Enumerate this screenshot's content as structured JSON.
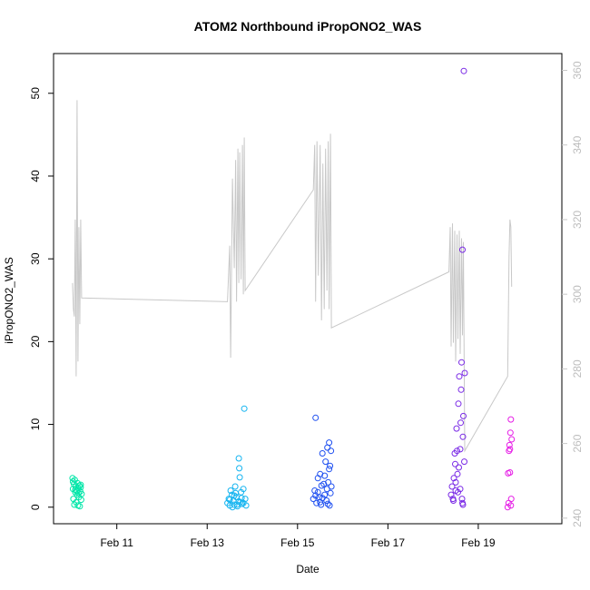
{
  "chart_data": {
    "type": "scatter",
    "title": "ATOM2 Northbound iPropONO2_WAS",
    "xlabel": "Date",
    "ylabel": "iPropONO2_WAS",
    "x_tick_labels": [
      "Feb 11",
      "Feb 13",
      "Feb 15",
      "Feb 17",
      "Feb 19"
    ],
    "x_tick_values": [
      11,
      13,
      15,
      17,
      19
    ],
    "xlim": [
      9.6,
      20.85
    ],
    "ylim": [
      -2.0,
      54.8
    ],
    "y_ticks": [
      0,
      10,
      20,
      30,
      40,
      50
    ],
    "y_right_ticks": [
      240,
      260,
      280,
      300,
      320,
      340,
      360
    ],
    "y_right_lim": [
      238.5,
      364.5
    ],
    "y_right_color": "#c8c8c8",
    "line_color": "#c8c8c8",
    "grid": false,
    "point_groups": [
      {
        "color": "#00e6a8",
        "points": [
          [
            10.02,
            3.5
          ],
          [
            10.03,
            2.2
          ],
          [
            10.04,
            1.0
          ],
          [
            10.05,
            2.8
          ],
          [
            10.06,
            0.3
          ],
          [
            10.07,
            3.3
          ],
          [
            10.08,
            1.8
          ],
          [
            10.09,
            2.5
          ],
          [
            10.1,
            0.6
          ],
          [
            10.11,
            2.0
          ],
          [
            10.12,
            1.5
          ],
          [
            10.13,
            2.9
          ],
          [
            10.14,
            0.2
          ],
          [
            10.15,
            2.3
          ],
          [
            10.16,
            1.2
          ],
          [
            10.17,
            2.6
          ],
          [
            10.18,
            0.1
          ],
          [
            10.19,
            1.9
          ],
          [
            10.2,
            2.7
          ],
          [
            10.21,
            0.9
          ],
          [
            10.22,
            1.6
          ],
          [
            10.03,
            3.1
          ],
          [
            10.08,
            2.1
          ],
          [
            10.15,
            1.7
          ],
          [
            10.2,
            2.4
          ]
        ]
      },
      {
        "color": "#14b4f0",
        "points": [
          [
            13.45,
            0.5
          ],
          [
            13.48,
            1.0
          ],
          [
            13.5,
            0.2
          ],
          [
            13.52,
            2.0
          ],
          [
            13.55,
            1.5
          ],
          [
            13.58,
            0.8
          ],
          [
            13.6,
            0.3
          ],
          [
            13.62,
            2.5
          ],
          [
            13.65,
            1.2
          ],
          [
            13.67,
            0.1
          ],
          [
            13.7,
            5.9
          ],
          [
            13.71,
            4.7
          ],
          [
            13.72,
            3.6
          ],
          [
            13.73,
            0.6
          ],
          [
            13.75,
            1.8
          ],
          [
            13.77,
            0.4
          ],
          [
            13.8,
            2.2
          ],
          [
            13.82,
            11.9
          ],
          [
            13.84,
            1.0
          ],
          [
            13.86,
            0.2
          ],
          [
            13.5,
            0.9
          ],
          [
            13.6,
            1.4
          ],
          [
            13.7,
            0.7
          ],
          [
            13.8,
            0.5
          ],
          [
            13.56,
            0.0
          ],
          [
            13.66,
            0.3
          ],
          [
            13.76,
            1.1
          ],
          [
            13.63,
            1.7
          ]
        ]
      },
      {
        "color": "#1f50f0",
        "points": [
          [
            15.35,
            1.0
          ],
          [
            15.38,
            2.0
          ],
          [
            15.4,
            10.8
          ],
          [
            15.42,
            0.5
          ],
          [
            15.45,
            3.5
          ],
          [
            15.48,
            1.2
          ],
          [
            15.5,
            4.0
          ],
          [
            15.52,
            0.3
          ],
          [
            15.55,
            6.5
          ],
          [
            15.58,
            2.8
          ],
          [
            15.6,
            1.5
          ],
          [
            15.62,
            5.5
          ],
          [
            15.64,
            0.8
          ],
          [
            15.66,
            7.2
          ],
          [
            15.68,
            3.0
          ],
          [
            15.7,
            7.8
          ],
          [
            15.71,
            0.2
          ],
          [
            15.72,
            5.0
          ],
          [
            15.73,
            1.7
          ],
          [
            15.74,
            6.8
          ],
          [
            15.75,
            2.5
          ],
          [
            15.45,
            1.8
          ],
          [
            15.55,
            1.1
          ],
          [
            15.65,
            2.2
          ],
          [
            15.5,
            0.6
          ],
          [
            15.6,
            3.8
          ],
          [
            15.7,
            4.6
          ],
          [
            15.4,
            1.4
          ],
          [
            15.53,
            2.6
          ],
          [
            15.67,
            0.4
          ]
        ]
      },
      {
        "color": "#7a2ae6",
        "points": [
          [
            18.4,
            1.5
          ],
          [
            18.42,
            2.5
          ],
          [
            18.44,
            1.0
          ],
          [
            18.46,
            3.5
          ],
          [
            18.48,
            6.5
          ],
          [
            18.5,
            2.0
          ],
          [
            18.52,
            9.5
          ],
          [
            18.54,
            4.0
          ],
          [
            18.56,
            12.5
          ],
          [
            18.58,
            15.8
          ],
          [
            18.6,
            7.0
          ],
          [
            18.62,
            14.2
          ],
          [
            18.63,
            17.5
          ],
          [
            18.64,
            1.0
          ],
          [
            18.65,
            31.1
          ],
          [
            18.66,
            0.3
          ],
          [
            18.67,
            11.0
          ],
          [
            18.68,
            52.7
          ],
          [
            18.69,
            5.5
          ],
          [
            18.7,
            16.2
          ],
          [
            18.45,
            0.8
          ],
          [
            18.55,
            1.8
          ],
          [
            18.65,
            0.5
          ],
          [
            18.5,
            3.0
          ],
          [
            18.6,
            2.2
          ],
          [
            18.53,
            6.8
          ],
          [
            18.61,
            10.2
          ],
          [
            18.57,
            4.8
          ],
          [
            18.49,
            5.2
          ],
          [
            18.66,
            8.5
          ]
        ]
      },
      {
        "color": "#e61ee6",
        "points": [
          [
            19.65,
            0.0
          ],
          [
            19.67,
            0.5
          ],
          [
            19.68,
            6.8
          ],
          [
            19.69,
            7.5
          ],
          [
            19.7,
            4.2
          ],
          [
            19.71,
            9.0
          ],
          [
            19.72,
            10.6
          ],
          [
            19.73,
            1.0
          ],
          [
            19.74,
            8.2
          ],
          [
            19.72,
            0.2
          ],
          [
            19.7,
            7.0
          ],
          [
            19.66,
            4.1
          ]
        ]
      }
    ],
    "line_points": [
      [
        10.02,
        303
      ],
      [
        10.04,
        296
      ],
      [
        10.06,
        294
      ],
      [
        10.08,
        320
      ],
      [
        10.1,
        278
      ],
      [
        10.12,
        352
      ],
      [
        10.14,
        282
      ],
      [
        10.16,
        318
      ],
      [
        10.18,
        292
      ],
      [
        10.2,
        320
      ],
      [
        10.22,
        299
      ],
      [
        13.45,
        298
      ],
      [
        13.5,
        313
      ],
      [
        13.52,
        283
      ],
      [
        13.56,
        331
      ],
      [
        13.6,
        307
      ],
      [
        13.63,
        336
      ],
      [
        13.65,
        298
      ],
      [
        13.68,
        339
      ],
      [
        13.7,
        303
      ],
      [
        13.72,
        338
      ],
      [
        13.75,
        304
      ],
      [
        13.78,
        340
      ],
      [
        13.8,
        300
      ],
      [
        13.82,
        342
      ],
      [
        13.84,
        301
      ],
      [
        15.35,
        328
      ],
      [
        15.38,
        340
      ],
      [
        15.4,
        298
      ],
      [
        15.43,
        341
      ],
      [
        15.46,
        305
      ],
      [
        15.5,
        340
      ],
      [
        15.53,
        293
      ],
      [
        15.56,
        335
      ],
      [
        15.59,
        296
      ],
      [
        15.62,
        339
      ],
      [
        15.65,
        301
      ],
      [
        15.68,
        341
      ],
      [
        15.7,
        296
      ],
      [
        15.73,
        343
      ],
      [
        15.75,
        291
      ],
      [
        18.35,
        306
      ],
      [
        18.38,
        318
      ],
      [
        18.4,
        286
      ],
      [
        18.43,
        319
      ],
      [
        18.45,
        287
      ],
      [
        18.48,
        317
      ],
      [
        18.5,
        282
      ],
      [
        18.53,
        316
      ],
      [
        18.55,
        288
      ],
      [
        18.58,
        317
      ],
      [
        18.6,
        284
      ],
      [
        18.63,
        315
      ],
      [
        18.65,
        289
      ],
      [
        18.67,
        314
      ],
      [
        18.7,
        258
      ],
      [
        19.65,
        278
      ],
      [
        19.68,
        310
      ],
      [
        19.7,
        320
      ],
      [
        19.72,
        318
      ],
      [
        19.74,
        302
      ]
    ]
  }
}
